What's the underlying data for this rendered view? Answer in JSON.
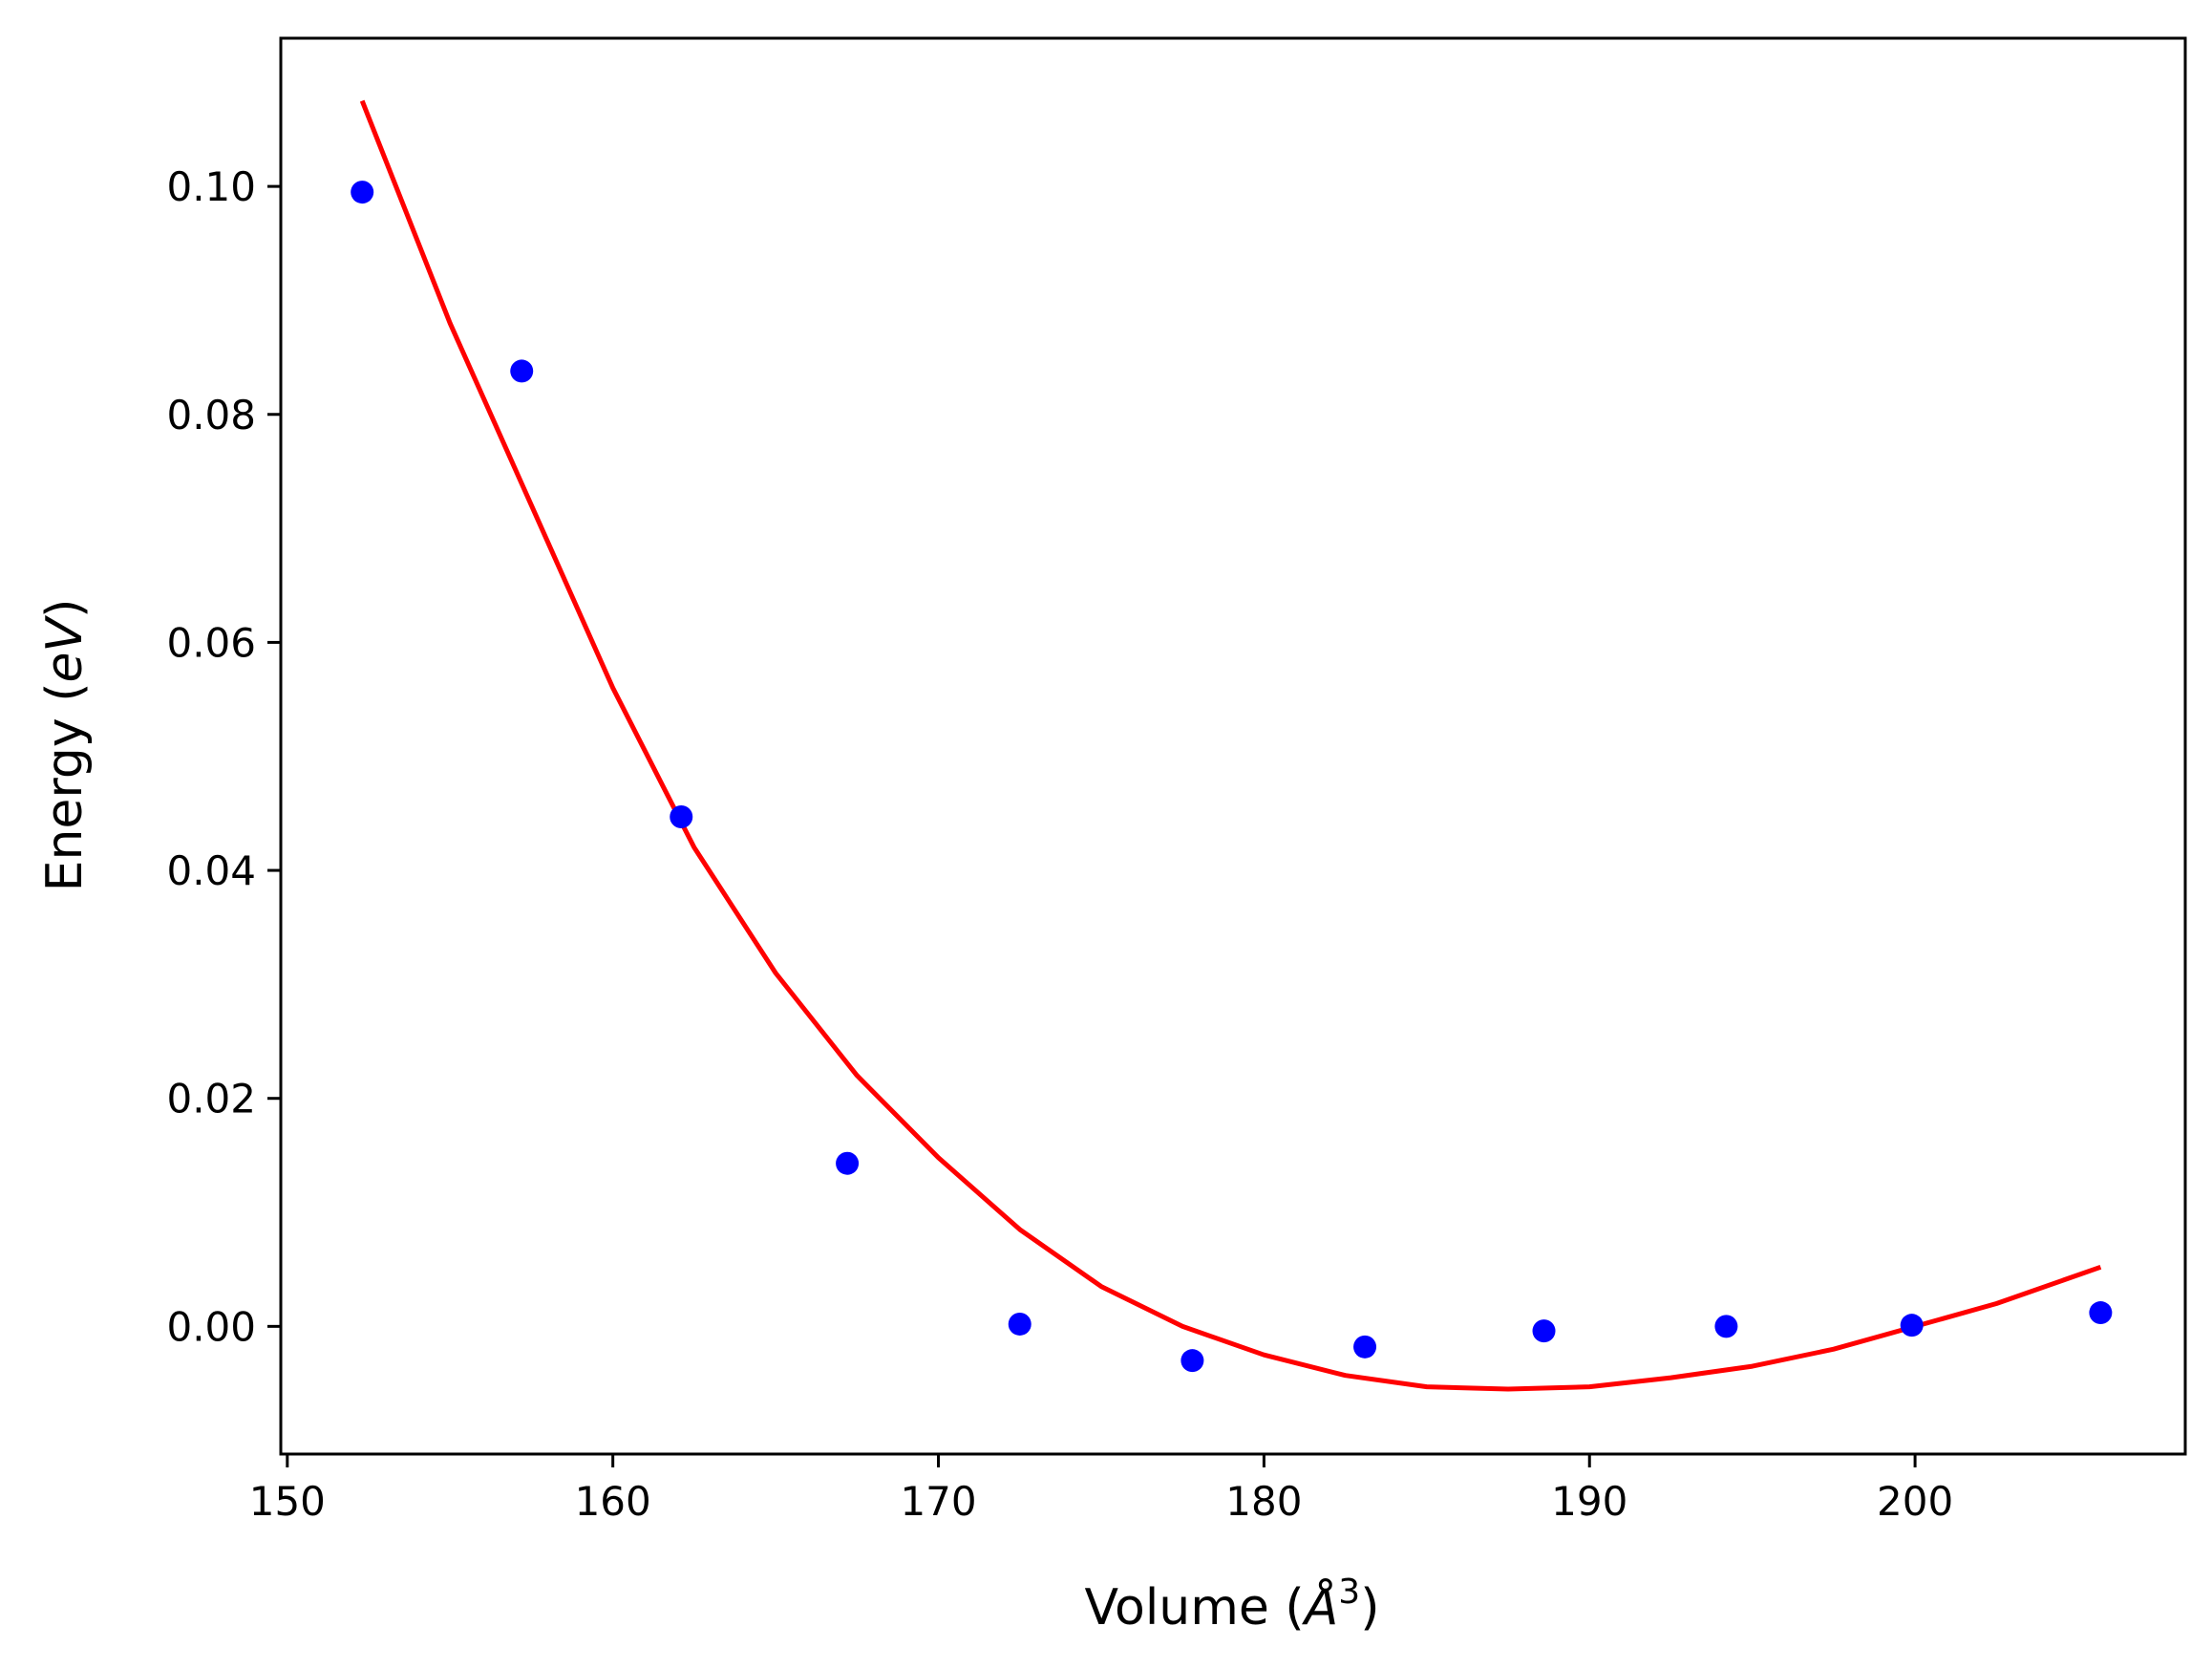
{
  "chart_data": {
    "type": "scatter",
    "title": "",
    "xlabel": "Volume (Å³)",
    "xlabel_parts": {
      "prefix": "Volume (",
      "unit": "Å",
      "exponent": "3",
      "suffix": ")"
    },
    "ylabel": "Energy (eV)",
    "ylabel_parts": {
      "prefix": "Energy (",
      "unit": "eV",
      "suffix": ")"
    },
    "xlim": [
      149.8,
      208.3
    ],
    "ylim": [
      -0.0112,
      0.113
    ],
    "xticks": [
      150,
      160,
      170,
      180,
      190,
      200
    ],
    "xtick_labels": [
      "150",
      "160",
      "170",
      "180",
      "190",
      "200"
    ],
    "yticks": [
      0.0,
      0.02,
      0.04,
      0.06,
      0.08,
      0.1
    ],
    "ytick_labels": [
      "0.00",
      "0.02",
      "0.04",
      "0.06",
      "0.08",
      "0.10"
    ],
    "grid": false,
    "series": [
      {
        "kind": "scatter",
        "color": "#0000ff",
        "x": [
          152.3,
          157.2,
          162.1,
          167.2,
          172.5,
          177.8,
          183.1,
          188.6,
          194.2,
          199.9,
          205.7
        ],
        "y": [
          0.0995,
          0.0838,
          0.0447,
          0.0143,
          0.0002,
          -0.003,
          -0.0018,
          -0.0004,
          0.0,
          0.0001,
          0.0012
        ]
      },
      {
        "kind": "line",
        "color": "#ff0000",
        "x": [
          152.3,
          155.0,
          157.5,
          160.0,
          162.5,
          165.0,
          167.5,
          170.0,
          172.5,
          175.0,
          177.5,
          180.0,
          182.5,
          185.0,
          187.5,
          190.0,
          192.5,
          195.0,
          197.5,
          200.0,
          202.5,
          205.7
        ],
        "y": [
          0.1075,
          0.088,
          0.072,
          0.056,
          0.042,
          0.031,
          0.022,
          0.0148,
          0.0085,
          0.0035,
          0.0,
          -0.0025,
          -0.0043,
          -0.0053,
          -0.0055,
          -0.0053,
          -0.0045,
          -0.0035,
          -0.002,
          0.0,
          0.002,
          0.0052
        ]
      }
    ]
  }
}
